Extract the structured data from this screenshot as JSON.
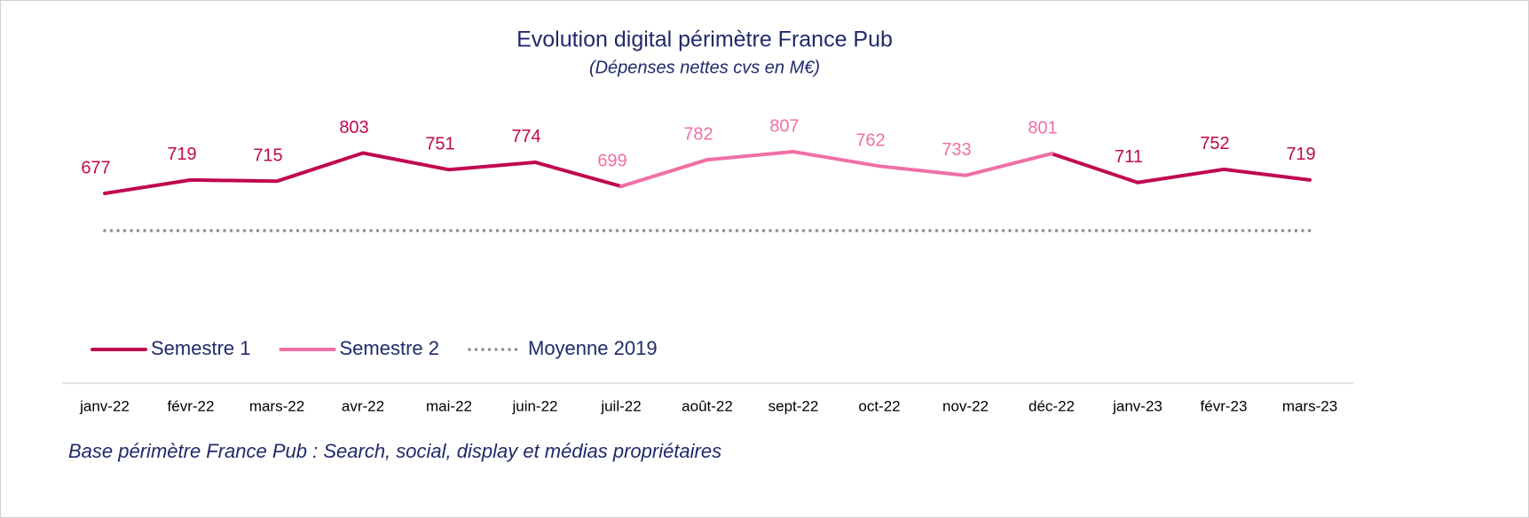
{
  "chart_data": {
    "type": "line",
    "title": "Evolution digital périmètre France Pub",
    "subtitle": "(Dépenses nettes cvs en M€)",
    "footnote": "Base périmètre France Pub :  Search, social, display et médias propriétaires",
    "categories": [
      "janv-22",
      "févr-22",
      "mars-22",
      "avr-22",
      "mai-22",
      "juin-22",
      "juil-22",
      "août-22",
      "sept-22",
      "oct-22",
      "nov-22",
      "déc-22",
      "janv-23",
      "févr-23",
      "mars-23"
    ],
    "ylim": [
      500,
      850
    ],
    "series": [
      {
        "name": "Semestre 1",
        "color": "#c0084f",
        "style": "solid",
        "labels": true,
        "values": [
          677,
          719,
          715,
          803,
          751,
          774,
          null,
          null,
          null,
          null,
          null,
          null,
          711,
          752,
          719
        ]
      },
      {
        "name": "Semestre 2",
        "color": "#f06fa5",
        "style": "solid",
        "labels": true,
        "values": [
          null,
          null,
          null,
          null,
          null,
          null,
          699,
          782,
          807,
          762,
          733,
          801,
          null,
          null,
          null
        ]
      },
      {
        "name": "Moyenne 2019",
        "color": "#8c8c8c",
        "style": "dotted",
        "labels": false,
        "values": [
          561,
          561,
          561,
          561,
          561,
          561,
          561,
          561,
          561,
          561,
          561,
          561,
          561,
          561,
          561
        ]
      }
    ]
  }
}
